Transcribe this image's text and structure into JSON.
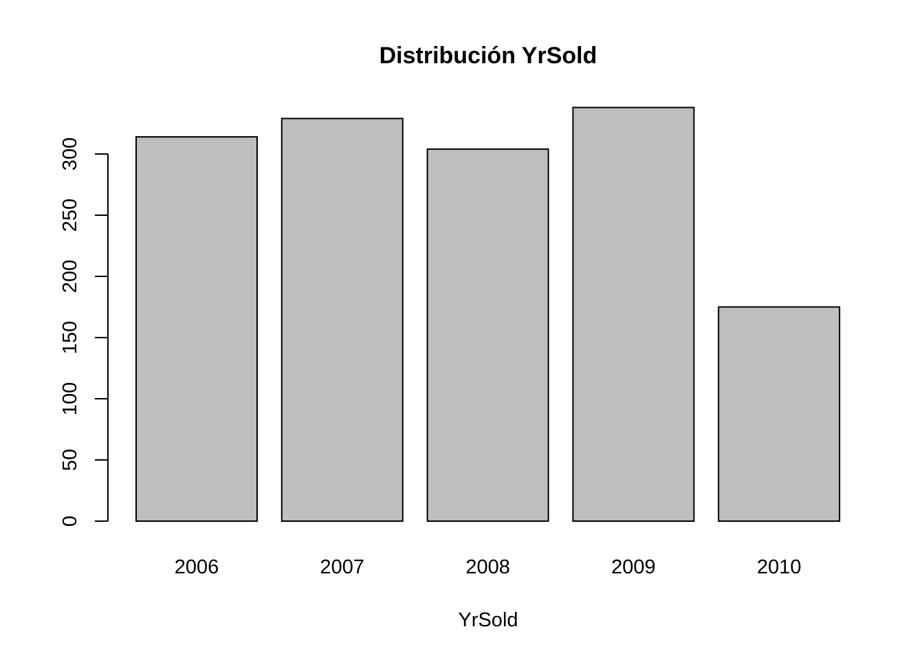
{
  "chart_data": {
    "type": "bar",
    "title": "Distribución YrSold",
    "xlabel": "YrSold",
    "ylabel": "",
    "categories": [
      "2006",
      "2007",
      "2008",
      "2009",
      "2010"
    ],
    "values": [
      314,
      329,
      304,
      338,
      175
    ],
    "ylim": [
      0,
      338
    ],
    "y_ticks": [
      0,
      50,
      100,
      150,
      200,
      250,
      300
    ],
    "y_tick_labels": [
      "0",
      "50",
      "100",
      "150",
      "200",
      "250",
      "300"
    ],
    "bar_color": "#bebebe",
    "bar_border_color": "#000000",
    "grid": false,
    "legend": false
  }
}
